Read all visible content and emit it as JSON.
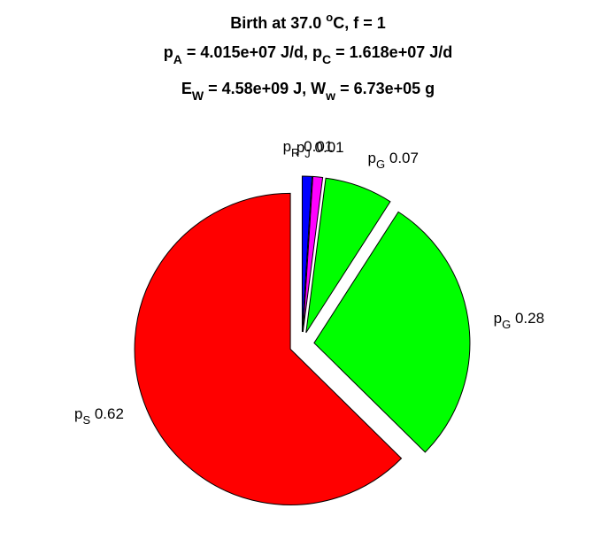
{
  "chart_data": {
    "type": "pie",
    "title": {
      "line1": {
        "pre": "Birth at 37.0 ",
        "sup": "o",
        "post": "C, f = 1"
      },
      "line2": [
        {
          "t": "p"
        },
        {
          "sub": "A"
        },
        {
          "t": " = 4.015e+07 J/d, p"
        },
        {
          "sub": "C"
        },
        {
          "t": " = 1.618e+07 J/d"
        }
      ],
      "line3": [
        {
          "t": "E"
        },
        {
          "sub": "W"
        },
        {
          "t": " = 4.58e+09 J, W"
        },
        {
          "sub": "w"
        },
        {
          "t": " = 6.73e+05 g"
        }
      ]
    },
    "slices": [
      {
        "name": "p",
        "sub": "R",
        "value": 0.01,
        "value_label": "0.01",
        "color": "#0000ff"
      },
      {
        "name": "p",
        "sub": "J",
        "value": 0.01,
        "value_label": "0.01",
        "color": "#ff00ff"
      },
      {
        "name": "p",
        "sub": "G",
        "value": 0.07,
        "value_label": "0.07",
        "color": "#00ff00"
      },
      {
        "name": "p",
        "sub": "G",
        "value": 0.28,
        "value_label": "0.28",
        "color": "#00ff00"
      },
      {
        "name": "p",
        "sub": "S",
        "value": 0.62,
        "value_label": "0.62",
        "color": "#ff0000"
      }
    ]
  }
}
